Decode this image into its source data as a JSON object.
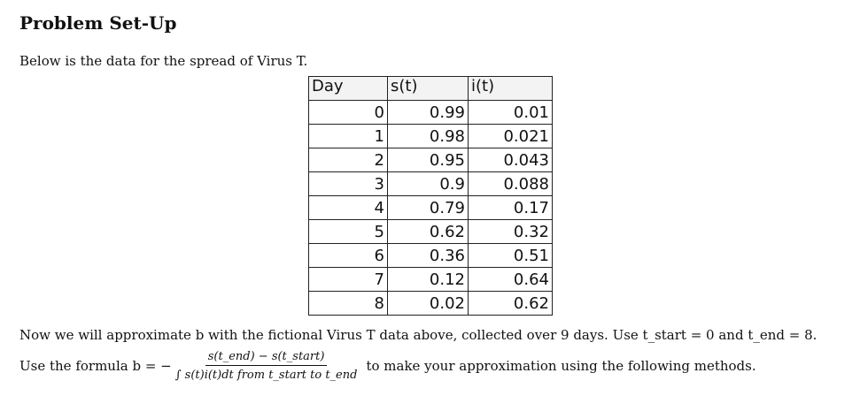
{
  "heading": "Problem Set-Up",
  "intro": "Below is the data for the spread of Virus T.",
  "table": {
    "headers": [
      "Day",
      "s(t)",
      "i(t)"
    ],
    "rows": [
      [
        "0",
        "0.99",
        "0.01"
      ],
      [
        "1",
        "0.98",
        "0.021"
      ],
      [
        "2",
        "0.95",
        "0.043"
      ],
      [
        "3",
        "0.9",
        "0.088"
      ],
      [
        "4",
        "0.79",
        "0.17"
      ],
      [
        "5",
        "0.62",
        "0.32"
      ],
      [
        "6",
        "0.36",
        "0.51"
      ],
      [
        "7",
        "0.12",
        "0.64"
      ],
      [
        "8",
        "0.02",
        "0.62"
      ]
    ]
  },
  "paragraph1": "Now we will approximate b with the fictional Virus T data above, collected over 9 days. Use t_start = 0 and t_end = 8.",
  "paragraph2": {
    "prefix": "Use the formula b = −",
    "numerator": "s(t_end) − s(t_start)",
    "denominator": "∫ s(t)i(t)dt from t_start to t_end",
    "suffix": "to make your approximation using the following methods."
  }
}
